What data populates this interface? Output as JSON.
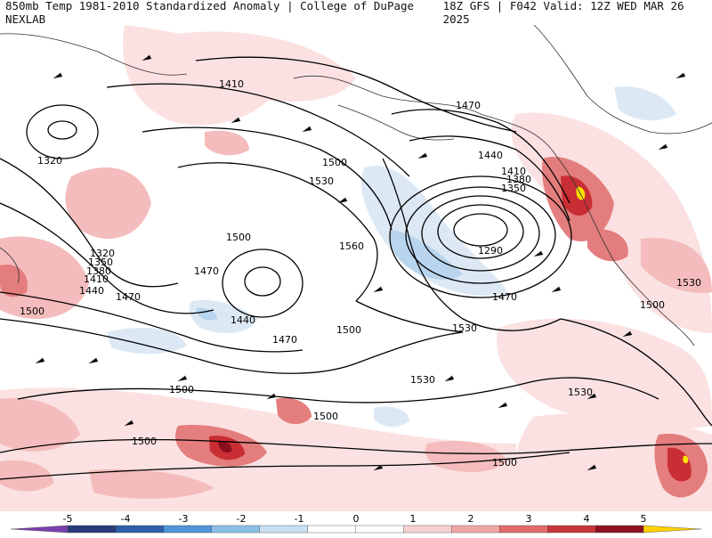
{
  "header": {
    "left_title": "850mb Temp 1981-2010 Standardized Anomaly | College of DuPage NEXLAB",
    "right_title": "18Z GFS | F042 Valid: 12Z WED MAR 26 2025"
  },
  "contour_labels": [
    "1410",
    "1320",
    "1320",
    "1350",
    "1380",
    "1410",
    "1440",
    "1470",
    "1500",
    "1530",
    "1500",
    "1560",
    "1470",
    "1440",
    "1470",
    "1500",
    "1500",
    "1470",
    "1440",
    "1410",
    "1380",
    "1350",
    "1290",
    "1470",
    "1530",
    "1530",
    "1530",
    "1500",
    "1530",
    "1500",
    "1500",
    "1500",
    "1500"
  ],
  "colorbar": {
    "ticks": [
      "-5",
      "-4",
      "-3",
      "-2",
      "-1",
      "0",
      "1",
      "2",
      "3",
      "4",
      "5"
    ],
    "colors": [
      "#7b3fb0",
      "#2a3a7a",
      "#2d5fa8",
      "#4f95d8",
      "#8cc0e8",
      "#c9e0f3",
      "#ffffff",
      "#ffffff",
      "#f8d2d2",
      "#f2a6a6",
      "#e36b6b",
      "#c7353a",
      "#8e1020",
      "#ffd000"
    ]
  },
  "legend_colors": {
    "cold_1": "#dce9f5",
    "cold_2": "#b9d5ee",
    "warm_1": "#fbe1e1",
    "warm_2": "#f4bcbc",
    "warm_3": "#e47d7d",
    "warm_4": "#c92e34",
    "warm_5": "#8a0f1d",
    "extreme": "#ffe000",
    "contour": "#000000",
    "coast": "#222222"
  }
}
